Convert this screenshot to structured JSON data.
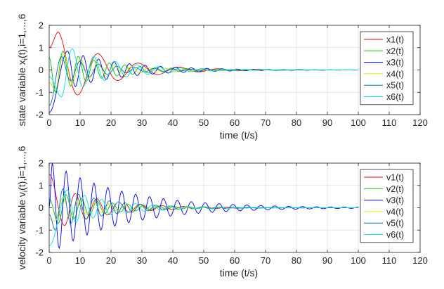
{
  "chart_data": [
    {
      "type": "line",
      "xlabel": "time (t/s)",
      "ylabel": "state variable x",
      "ylabel_sub": "i",
      "ylabel_tail": "(t),i=1,...,6",
      "xlim": [
        0,
        120
      ],
      "ylim": [
        -2,
        2
      ],
      "xticks": [
        0,
        10,
        20,
        30,
        40,
        50,
        60,
        70,
        80,
        90,
        100,
        110,
        120
      ],
      "yticks": [
        -2,
        -1,
        0,
        1,
        2
      ],
      "grid": true,
      "legend_position": "top-right",
      "x_end": 100,
      "series": [
        {
          "name": "x1(t)",
          "color": "#ff0000",
          "initial": 1.0,
          "peak": 1.7,
          "peak_t": 3.0,
          "decay": 0.12,
          "period": 13.0
        },
        {
          "name": "x2(t)",
          "color": "#00cc00",
          "initial": 0.55,
          "peak": -1.0,
          "peak_t": 2.0,
          "decay": 0.12,
          "period": 5.0
        },
        {
          "name": "x3(t)",
          "color": "#0000ff",
          "initial": -1.9,
          "peak": 0.85,
          "peak_t": 6.0,
          "decay": 0.1,
          "period": 5.0
        },
        {
          "name": "x4(t)",
          "color": "#e6e600",
          "initial": -0.55,
          "peak": -0.9,
          "peak_t": 2.0,
          "decay": 0.13,
          "period": 5.5
        },
        {
          "name": "x5(t)",
          "color": "#0072bd",
          "initial": -1.6,
          "peak": 0.6,
          "peak_t": 4.0,
          "decay": 0.13,
          "period": 6.0
        },
        {
          "name": "x6(t)",
          "color": "#00e5e5",
          "initial": -0.3,
          "peak": -1.2,
          "peak_t": 4.0,
          "decay": 0.12,
          "period": 7.0
        }
      ]
    },
    {
      "type": "line",
      "xlabel": "time (t/s)",
      "ylabel": "velocity variable v",
      "ylabel_sub": "i",
      "ylabel_tail": "(t),i=1,...,6",
      "xlim": [
        0,
        120
      ],
      "ylim": [
        -2,
        2
      ],
      "xticks": [
        0,
        10,
        20,
        30,
        40,
        50,
        60,
        70,
        80,
        90,
        100,
        110,
        120
      ],
      "yticks": [
        -2,
        -1,
        0,
        1,
        2
      ],
      "grid": true,
      "legend_position": "top-right",
      "x_end": 100,
      "series": [
        {
          "name": "v1(t)",
          "color": "#ff0000",
          "initial": 1.5,
          "peak": -0.8,
          "peak_t": 5.0,
          "decay": 0.12,
          "period": 7.0
        },
        {
          "name": "v2(t)",
          "color": "#00cc00",
          "initial": 0.4,
          "peak": -0.7,
          "peak_t": 3.0,
          "decay": 0.12,
          "period": 5.0
        },
        {
          "name": "v3(t)",
          "color": "#0000ff",
          "initial": 0.0,
          "peak": 2.0,
          "peak_t": 1.0,
          "decay": 0.08,
          "period": 4.5
        },
        {
          "name": "v4(t)",
          "color": "#e6e600",
          "initial": -0.5,
          "peak": -0.6,
          "peak_t": 2.0,
          "decay": 0.13,
          "period": 5.0
        },
        {
          "name": "v5(t)",
          "color": "#0072bd",
          "initial": -0.3,
          "peak": -1.0,
          "peak_t": 2.0,
          "decay": 0.12,
          "period": 5.0
        },
        {
          "name": "v6(t)",
          "color": "#00e5e5",
          "initial": -1.7,
          "peak": 0.8,
          "peak_t": 6.0,
          "decay": 0.12,
          "period": 5.5
        }
      ]
    }
  ]
}
